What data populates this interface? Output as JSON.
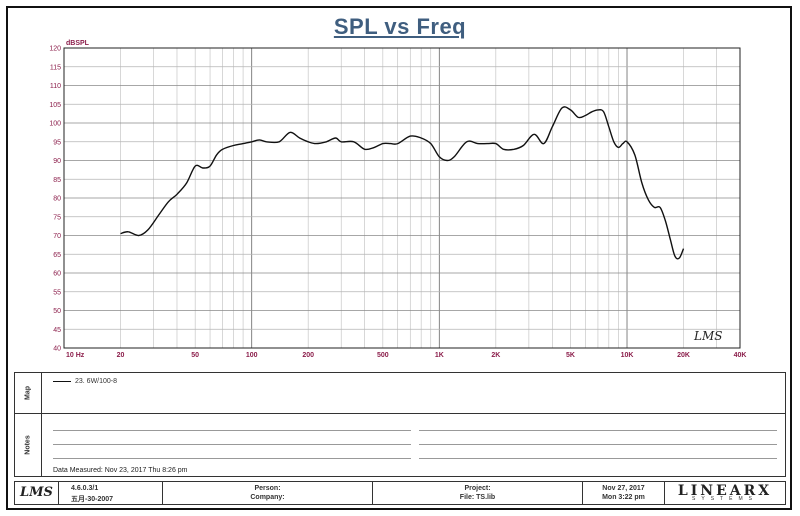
{
  "chart_data": {
    "type": "line",
    "title": "SPL vs Freq",
    "ylabel": "dBSPL",
    "xlabel": "",
    "x_scale": "log",
    "xlim": [
      10,
      40000
    ],
    "ylim": [
      40,
      120
    ],
    "grid": true,
    "y_ticks": [
      40,
      45,
      50,
      55,
      60,
      65,
      70,
      75,
      80,
      85,
      90,
      95,
      100,
      105,
      110,
      115,
      120
    ],
    "x_ticks": [
      {
        "value": 10,
        "label": "10 Hz"
      },
      {
        "value": 20,
        "label": "20"
      },
      {
        "value": 50,
        "label": "50"
      },
      {
        "value": 100,
        "label": "100"
      },
      {
        "value": 200,
        "label": "200"
      },
      {
        "value": 500,
        "label": "500"
      },
      {
        "value": 1000,
        "label": "1K"
      },
      {
        "value": 2000,
        "label": "2K"
      },
      {
        "value": 5000,
        "label": "5K"
      },
      {
        "value": 10000,
        "label": "10K"
      },
      {
        "value": 20000,
        "label": "20K"
      },
      {
        "value": 40000,
        "label": "40K"
      }
    ],
    "series": [
      {
        "name": "23. 6W/100-8",
        "color": "#111111",
        "x": [
          20,
          22,
          25,
          28,
          32,
          36,
          40,
          45,
          50,
          55,
          60,
          65,
          70,
          80,
          90,
          100,
          110,
          120,
          140,
          160,
          180,
          200,
          220,
          250,
          280,
          300,
          350,
          400,
          450,
          500,
          550,
          600,
          700,
          800,
          900,
          1000,
          1100,
          1200,
          1400,
          1600,
          1800,
          2000,
          2200,
          2500,
          2800,
          3200,
          3600,
          4000,
          4500,
          5000,
          5500,
          6000,
          6500,
          7000,
          7500,
          8000,
          8500,
          9000,
          9500,
          10000,
          11000,
          12000,
          13000,
          14000,
          15000,
          16000,
          17000,
          18000,
          19000,
          20000
        ],
        "values": [
          70.5,
          71,
          70,
          71.5,
          75.5,
          79,
          81,
          84,
          88.5,
          88,
          88.5,
          91.5,
          93,
          94,
          94.5,
          95,
          95.5,
          95,
          95,
          97.5,
          96,
          95,
          94.5,
          95,
          96,
          95,
          95,
          93,
          93.5,
          94.5,
          94.5,
          94.5,
          96.5,
          96,
          94.5,
          91,
          90,
          91,
          95,
          94.5,
          94.5,
          94.5,
          93,
          93,
          94,
          97,
          94.5,
          99,
          104,
          103.5,
          101.5,
          102,
          103,
          103.5,
          103,
          99,
          95,
          93.5,
          94.5,
          95,
          91.5,
          84,
          79.5,
          77.5,
          77.5,
          74,
          69,
          64.5,
          64,
          66.5
        ]
      }
    ],
    "annotations": [
      "LMS"
    ]
  },
  "legend_panel": {
    "label": "Map",
    "entries": [
      {
        "name": "23. 6W/100-8"
      }
    ]
  },
  "notes_panel": {
    "label": "Notes",
    "measured_text": "Data Measured: Nov 23, 2017  Thu  8:26 pm"
  },
  "footer": {
    "lms_logo": "LMS",
    "version": "4.6.0.3/1",
    "version_date": "五月-30-2007",
    "person_label": "Person:",
    "company_label": "Company:",
    "project_label": "Project:",
    "file_label": "File: TS.lib",
    "date_line1": "Nov 27, 2017",
    "date_line2": "Mon  3:22 pm",
    "brand": "LINEARX",
    "brand_sub": "SYSTEMS"
  },
  "colors": {
    "title": "#3f5e7f",
    "tick_labels": "#8b1d4a",
    "grid": "#9a9a9a",
    "curve": "#111111"
  }
}
